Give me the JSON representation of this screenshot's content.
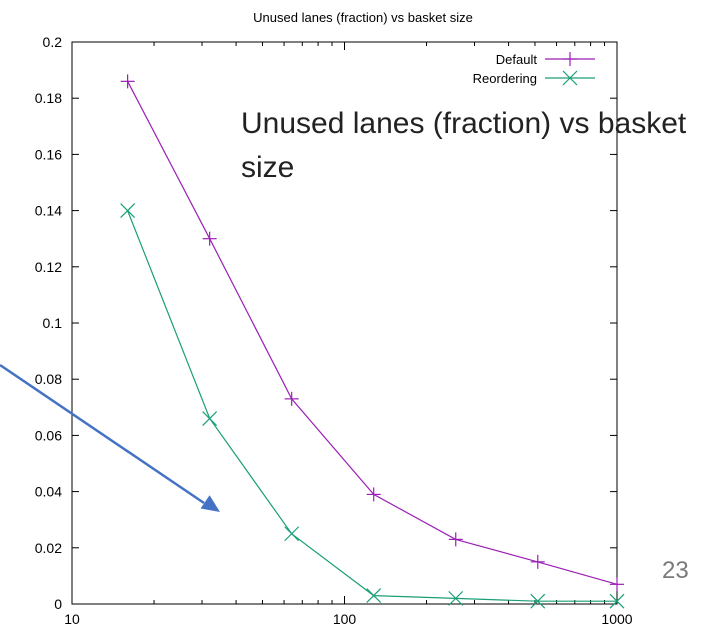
{
  "chart_data": {
    "type": "line",
    "title": "Unused lanes (fraction) vs basket size",
    "xscale": "log",
    "xlim": [
      10,
      1000
    ],
    "ylim": [
      0,
      0.2
    ],
    "xticks": [
      "10",
      "100",
      "1000"
    ],
    "yticks": [
      "0",
      "0.02",
      "0.04",
      "0.06",
      "0.08",
      "0.1",
      "0.12",
      "0.14",
      "0.16",
      "0.18",
      "0.2"
    ],
    "grid": false,
    "legend": "top-right",
    "series": [
      {
        "name": "Default",
        "color": "#9b1fb5",
        "marker": "plus",
        "x": [
          16,
          32,
          64,
          128,
          256,
          512,
          1000
        ],
        "y": [
          0.186,
          0.13,
          0.073,
          0.039,
          0.023,
          0.015,
          0.007
        ]
      },
      {
        "name": "Reordering",
        "color": "#1a9e77",
        "marker": "cross",
        "x": [
          16,
          32,
          64,
          128,
          256,
          512,
          1000
        ],
        "y": [
          0.14,
          0.066,
          0.025,
          0.003,
          0.002,
          0.001,
          0.001
        ]
      }
    ]
  },
  "overlay": {
    "title_text": "Unused lanes (fraction) vs basket size",
    "slide_number": "23",
    "arrow_color": "#4472c4"
  }
}
